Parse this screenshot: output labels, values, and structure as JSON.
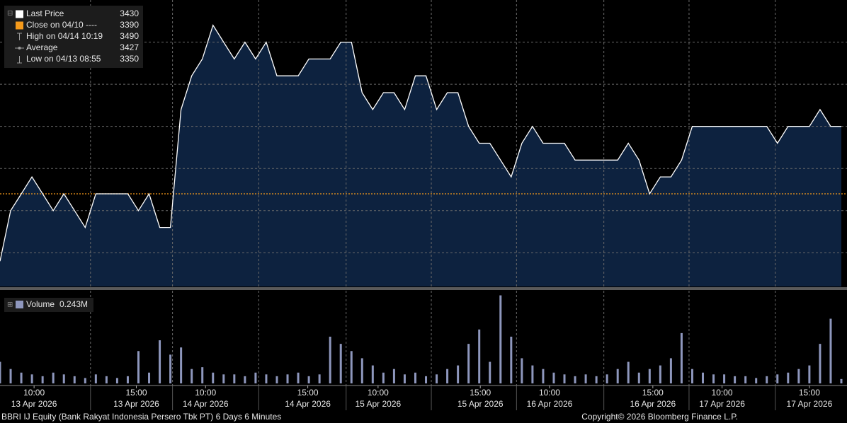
{
  "chart_data": {
    "type": "area",
    "legend": [
      {
        "label": "Last Price",
        "value": 3430,
        "color": "#ffffff"
      },
      {
        "label": "Close on 04/10 ----",
        "value": 3390,
        "color": "#f59a1b"
      },
      {
        "label": "High on 04/14 10:19",
        "value": 3490,
        "color": "#9a9a9a"
      },
      {
        "label": "Average",
        "value": 3427,
        "color": "#9a9a9a"
      },
      {
        "label": "Low on 04/13 08:55",
        "value": 3350,
        "color": "#9a9a9a"
      }
    ],
    "ylim": [
      3335,
      3505
    ],
    "ygrid": [
      3355,
      3380,
      3405,
      3430,
      3455,
      3480
    ],
    "xlim": [
      0,
      79
    ],
    "xgrid": [
      8.5,
      16.2,
      24.3,
      32.5,
      40.5,
      48.5,
      56.7,
      64.7,
      72.8
    ],
    "xticks": [
      {
        "value": 3.2,
        "label": "10:00",
        "date": "13 Apr 2026"
      },
      {
        "value": 12.8,
        "label": "15:00",
        "date": "13 Apr 2026"
      },
      {
        "value": 19.3,
        "label": "10:00",
        "date": "14 Apr 2026"
      },
      {
        "value": 28.9,
        "label": "15:00",
        "date": "14 Apr 2026"
      },
      {
        "value": 35.5,
        "label": "10:00",
        "date": "15 Apr 2026"
      },
      {
        "value": 45.1,
        "label": "15:00",
        "date": "15 Apr 2026"
      },
      {
        "value": 51.6,
        "label": "10:00",
        "date": "16 Apr 2026"
      },
      {
        "value": 61.3,
        "label": "15:00",
        "date": "16 Apr 2026"
      },
      {
        "value": 67.8,
        "label": "10:00",
        "date": "17 Apr 2026"
      },
      {
        "value": 76.0,
        "label": "15:00",
        "date": "17 Apr 2026"
      }
    ],
    "price": {
      "color": "#ffffff",
      "fill": "#0e2544",
      "values": [
        3350,
        3380,
        3390,
        3400,
        3390,
        3380,
        3390,
        3380,
        3370,
        3390,
        3390,
        3390,
        3390,
        3380,
        3390,
        3370,
        3370,
        3440,
        3460,
        3470,
        3490,
        3480,
        3470,
        3480,
        3470,
        3480,
        3460,
        3460,
        3460,
        3470,
        3470,
        3470,
        3480,
        3480,
        3450,
        3440,
        3450,
        3450,
        3440,
        3460,
        3460,
        3440,
        3450,
        3450,
        3430,
        3420,
        3420,
        3410,
        3400,
        3420,
        3430,
        3420,
        3420,
        3420,
        3410,
        3410,
        3410,
        3410,
        3410,
        3420,
        3410,
        3390,
        3400,
        3400,
        3410,
        3430,
        3430,
        3430,
        3430,
        3430,
        3430,
        3430,
        3430,
        3420,
        3430,
        3430,
        3430,
        3440,
        3430,
        3430
      ]
    },
    "volume": {
      "name": "Volume",
      "color": "#8e97bd",
      "last_label": "0.243M",
      "vlim": [
        0,
        5
      ],
      "values": [
        1.2,
        0.8,
        0.6,
        0.5,
        0.4,
        0.6,
        0.5,
        0.4,
        0.3,
        0.5,
        0.4,
        0.3,
        0.4,
        1.8,
        0.6,
        2.4,
        1.6,
        2.0,
        0.8,
        0.9,
        0.6,
        0.5,
        0.5,
        0.4,
        0.6,
        0.5,
        0.4,
        0.5,
        0.6,
        0.4,
        0.5,
        2.6,
        2.2,
        1.8,
        1.4,
        1.0,
        0.6,
        0.8,
        0.5,
        0.6,
        0.4,
        0.5,
        0.8,
        1.0,
        2.2,
        3.0,
        1.2,
        4.9,
        2.6,
        1.4,
        1.0,
        0.8,
        0.6,
        0.5,
        0.4,
        0.5,
        0.4,
        0.5,
        0.8,
        1.2,
        0.6,
        0.8,
        1.0,
        1.4,
        2.8,
        0.8,
        0.6,
        0.5,
        0.5,
        0.4,
        0.4,
        0.3,
        0.4,
        0.5,
        0.6,
        0.8,
        1.0,
        2.2,
        3.6,
        0.243
      ]
    },
    "footer_left": "BBRI IJ Equity (Bank Rakyat Indonesia Persero Tbk PT) 6 Days 6 Minutes",
    "footer_right": "Copyright© 2026 Bloomberg Finance L.P."
  }
}
